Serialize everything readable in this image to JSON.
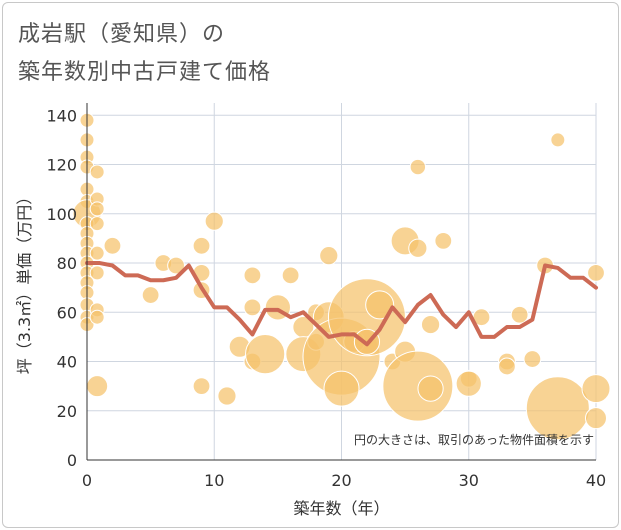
{
  "title_line1": "成岩駅（愛知県）の",
  "title_line2": "築年数別中古戸建て価格",
  "chart_data": {
    "type": "scatter",
    "xlabel": "築年数（年）",
    "ylabel": "坪（3.3㎡）単価（万円）",
    "xlim": [
      0,
      40
    ],
    "ylim": [
      0,
      145
    ],
    "xticks": [
      0,
      10,
      20,
      30,
      40
    ],
    "yticks": [
      0,
      20,
      40,
      60,
      80,
      100,
      120,
      140
    ],
    "grid": true,
    "annotation": "円の大きさは、取引のあった物件面積を示す",
    "colors": {
      "bubble": "#f5c26b",
      "line": "#cd6a55",
      "grid": "#cfd6e0",
      "axis": "#333333"
    },
    "bubbles": [
      {
        "x": 0,
        "y": 138,
        "s": 1
      },
      {
        "x": 0,
        "y": 130,
        "s": 1
      },
      {
        "x": 0,
        "y": 123,
        "s": 1
      },
      {
        "x": 0,
        "y": 119,
        "s": 1
      },
      {
        "x": 0,
        "y": 110,
        "s": 1
      },
      {
        "x": 0,
        "y": 105,
        "s": 1
      },
      {
        "x": 0,
        "y": 100,
        "s": 2
      },
      {
        "x": 0,
        "y": 96,
        "s": 1
      },
      {
        "x": 0,
        "y": 92,
        "s": 1
      },
      {
        "x": 0,
        "y": 88,
        "s": 1
      },
      {
        "x": 0,
        "y": 84,
        "s": 1
      },
      {
        "x": 0,
        "y": 80,
        "s": 1
      },
      {
        "x": 0,
        "y": 76,
        "s": 1
      },
      {
        "x": 0,
        "y": 72,
        "s": 1
      },
      {
        "x": 0,
        "y": 68,
        "s": 1
      },
      {
        "x": 0,
        "y": 63,
        "s": 1
      },
      {
        "x": 0,
        "y": 58,
        "s": 1
      },
      {
        "x": 0,
        "y": 55,
        "s": 1
      },
      {
        "x": 0.8,
        "y": 117,
        "s": 1
      },
      {
        "x": 0.8,
        "y": 106,
        "s": 1
      },
      {
        "x": 0.8,
        "y": 102,
        "s": 1
      },
      {
        "x": 0.8,
        "y": 96,
        "s": 1
      },
      {
        "x": 0.8,
        "y": 84,
        "s": 1
      },
      {
        "x": 0.8,
        "y": 76,
        "s": 1
      },
      {
        "x": 0.8,
        "y": 61,
        "s": 1
      },
      {
        "x": 0.8,
        "y": 58,
        "s": 1
      },
      {
        "x": 0.8,
        "y": 30,
        "s": 1.5
      },
      {
        "x": 2,
        "y": 87,
        "s": 1.2
      },
      {
        "x": 5,
        "y": 67,
        "s": 1.2
      },
      {
        "x": 6,
        "y": 80,
        "s": 1.2
      },
      {
        "x": 7,
        "y": 79,
        "s": 1.2
      },
      {
        "x": 9,
        "y": 87,
        "s": 1.2
      },
      {
        "x": 9,
        "y": 76,
        "s": 1.2
      },
      {
        "x": 9,
        "y": 69,
        "s": 1.2
      },
      {
        "x": 9,
        "y": 30,
        "s": 1.2
      },
      {
        "x": 10,
        "y": 97,
        "s": 1.3
      },
      {
        "x": 11,
        "y": 26,
        "s": 1.3
      },
      {
        "x": 12,
        "y": 46,
        "s": 1.5
      },
      {
        "x": 13,
        "y": 75,
        "s": 1.2
      },
      {
        "x": 13,
        "y": 62,
        "s": 1.2
      },
      {
        "x": 13,
        "y": 40,
        "s": 1.2
      },
      {
        "x": 14,
        "y": 43,
        "s": 2.8
      },
      {
        "x": 15,
        "y": 62,
        "s": 1.8
      },
      {
        "x": 16,
        "y": 75,
        "s": 1.2
      },
      {
        "x": 17,
        "y": 54,
        "s": 1.5
      },
      {
        "x": 17,
        "y": 43,
        "s": 2.5
      },
      {
        "x": 18,
        "y": 60,
        "s": 1.2
      },
      {
        "x": 18,
        "y": 48,
        "s": 1.2
      },
      {
        "x": 19,
        "y": 83,
        "s": 1.3
      },
      {
        "x": 19,
        "y": 58,
        "s": 2.2
      },
      {
        "x": 20,
        "y": 42,
        "s": 5.5
      },
      {
        "x": 20,
        "y": 29,
        "s": 2.5
      },
      {
        "x": 21,
        "y": 48,
        "s": 1.5
      },
      {
        "x": 22,
        "y": 58,
        "s": 5.5
      },
      {
        "x": 22,
        "y": 48,
        "s": 1.8
      },
      {
        "x": 23,
        "y": 63,
        "s": 2.0
      },
      {
        "x": 24,
        "y": 40,
        "s": 1.2
      },
      {
        "x": 25,
        "y": 89,
        "s": 2.0
      },
      {
        "x": 25,
        "y": 44,
        "s": 1.5
      },
      {
        "x": 26,
        "y": 119,
        "s": 1.1
      },
      {
        "x": 26,
        "y": 86,
        "s": 1.3
      },
      {
        "x": 26,
        "y": 30,
        "s": 5.0
      },
      {
        "x": 27,
        "y": 55,
        "s": 1.3
      },
      {
        "x": 27,
        "y": 29,
        "s": 1.8
      },
      {
        "x": 28,
        "y": 89,
        "s": 1.2
      },
      {
        "x": 30,
        "y": 33,
        "s": 1.2
      },
      {
        "x": 30,
        "y": 31,
        "s": 1.8
      },
      {
        "x": 31,
        "y": 58,
        "s": 1.2
      },
      {
        "x": 33,
        "y": 40,
        "s": 1.2
      },
      {
        "x": 33,
        "y": 38,
        "s": 1.2
      },
      {
        "x": 34,
        "y": 59,
        "s": 1.2
      },
      {
        "x": 35,
        "y": 41,
        "s": 1.2
      },
      {
        "x": 36,
        "y": 79,
        "s": 1.2
      },
      {
        "x": 37,
        "y": 130,
        "s": 1.0
      },
      {
        "x": 37,
        "y": 21,
        "s": 4.5
      },
      {
        "x": 40,
        "y": 76,
        "s": 1.2
      },
      {
        "x": 40,
        "y": 29,
        "s": 2.0
      },
      {
        "x": 40,
        "y": 17,
        "s": 1.5
      }
    ],
    "series": [
      {
        "name": "average",
        "x": [
          0,
          1,
          2,
          3,
          4,
          5,
          6,
          7,
          8,
          9,
          10,
          11,
          12,
          13,
          14,
          15,
          16,
          17,
          18,
          19,
          20,
          21,
          22,
          23,
          24,
          25,
          26,
          27,
          28,
          29,
          30,
          31,
          32,
          33,
          34,
          35,
          36,
          37,
          38,
          39,
          40
        ],
        "values": [
          80,
          80,
          79,
          75,
          75,
          73,
          73,
          74,
          79,
          70,
          62,
          62,
          57,
          51,
          61,
          61,
          58,
          60,
          55,
          50,
          51,
          51,
          47,
          53,
          62,
          56,
          63,
          67,
          59,
          54,
          60,
          50,
          50,
          54,
          54,
          57,
          79,
          78,
          74,
          74,
          70
        ]
      }
    ]
  }
}
